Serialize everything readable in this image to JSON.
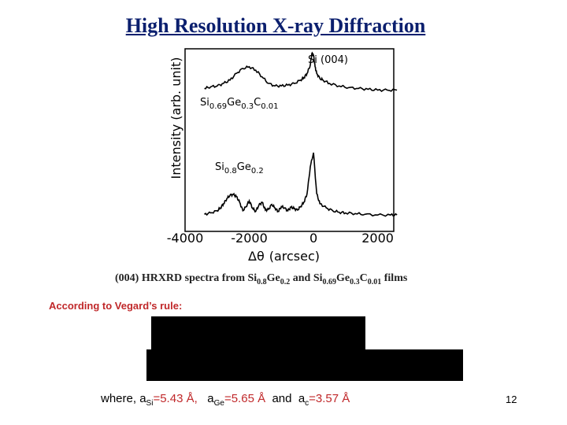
{
  "slide": {
    "title": "High Resolution X-ray Diffraction",
    "page_number": "12"
  },
  "chart_data": {
    "type": "line",
    "xlabel_symbol": "Δθ",
    "xlabel_unit": "(arcsec)",
    "ylabel": "Intensity (arb. unit)",
    "xlim": [
      -4000,
      2500
    ],
    "x_ticks": [
      "-4000",
      "-2000",
      "0",
      "2000"
    ],
    "x_tick_values": [
      -4000,
      -2000,
      0,
      2000
    ],
    "annotations": {
      "peak": "Si (004)",
      "upper_curve": {
        "a": "Si",
        "a_sub": "0.69",
        "b": "Ge",
        "b_sub": "0.3",
        "c": "C",
        "c_sub": "0.01"
      },
      "lower_curve": {
        "a": "Si",
        "a_sub": "0.8",
        "b": "Ge",
        "b_sub": "0.2"
      }
    },
    "series": [
      {
        "x": [
          -3400,
          -3200,
          -3000,
          -2800,
          -2600,
          -2400,
          -2200,
          -2000,
          -1800,
          -1600,
          -1400,
          -1200,
          -1000,
          -800,
          -600,
          -400,
          -300,
          -200,
          -100,
          -50,
          0,
          50,
          100,
          200,
          300,
          500,
          800,
          1100,
          1400,
          1700,
          2000,
          2300,
          2600
        ],
        "values": [
          0.6,
          0.62,
          0.63,
          0.66,
          0.7,
          0.78,
          0.84,
          0.86,
          0.82,
          0.74,
          0.66,
          0.63,
          0.63,
          0.64,
          0.66,
          0.7,
          0.73,
          0.78,
          0.88,
          1.02,
          1.0,
          0.86,
          0.78,
          0.72,
          0.7,
          0.66,
          0.63,
          0.61,
          0.6,
          0.59,
          0.58,
          0.58,
          0.58
        ]
      },
      {
        "x": [
          -3400,
          -3200,
          -3000,
          -2900,
          -2800,
          -2700,
          -2600,
          -2500,
          -2400,
          -2300,
          -2200,
          -2100,
          -2000,
          -1900,
          -1800,
          -1700,
          -1600,
          -1500,
          -1400,
          -1300,
          -1200,
          -1100,
          -1000,
          -900,
          -800,
          -700,
          -600,
          -500,
          -400,
          -300,
          -200,
          -100,
          0,
          100,
          200,
          400,
          600,
          800,
          1000,
          1300,
          1600,
          2000,
          2400,
          2600
        ],
        "values": [
          0.13,
          0.15,
          0.18,
          0.22,
          0.28,
          0.35,
          0.4,
          0.41,
          0.38,
          0.3,
          0.18,
          0.24,
          0.32,
          0.22,
          0.17,
          0.26,
          0.3,
          0.19,
          0.2,
          0.27,
          0.22,
          0.17,
          0.24,
          0.22,
          0.18,
          0.23,
          0.21,
          0.19,
          0.24,
          0.3,
          0.42,
          0.8,
          1.0,
          0.42,
          0.28,
          0.22,
          0.18,
          0.16,
          0.15,
          0.14,
          0.13,
          0.12,
          0.12,
          0.12
        ]
      }
    ]
  },
  "caption": {
    "t1": "(004) HRXRD spectra from Si",
    "s1": "0.8",
    "t2": "Ge",
    "s2": "0.2",
    "t3": " and Si",
    "s3": "0.69",
    "t4": "Ge",
    "s4": "0.3",
    "t5": "C",
    "s5": "0.01",
    "t6": " films"
  },
  "vegard": "According to Vegard’s rule:",
  "where": {
    "lead": "where, a",
    "si_sub": "Si",
    "si_val": "=5.43 Å,",
    "ge_a": "a",
    "ge_sub": "Ge",
    "ge_val": "=5.65 Å",
    "and": "and",
    "c_a": "a",
    "c_sub": "c",
    "c_val": "=3.57 Å"
  }
}
